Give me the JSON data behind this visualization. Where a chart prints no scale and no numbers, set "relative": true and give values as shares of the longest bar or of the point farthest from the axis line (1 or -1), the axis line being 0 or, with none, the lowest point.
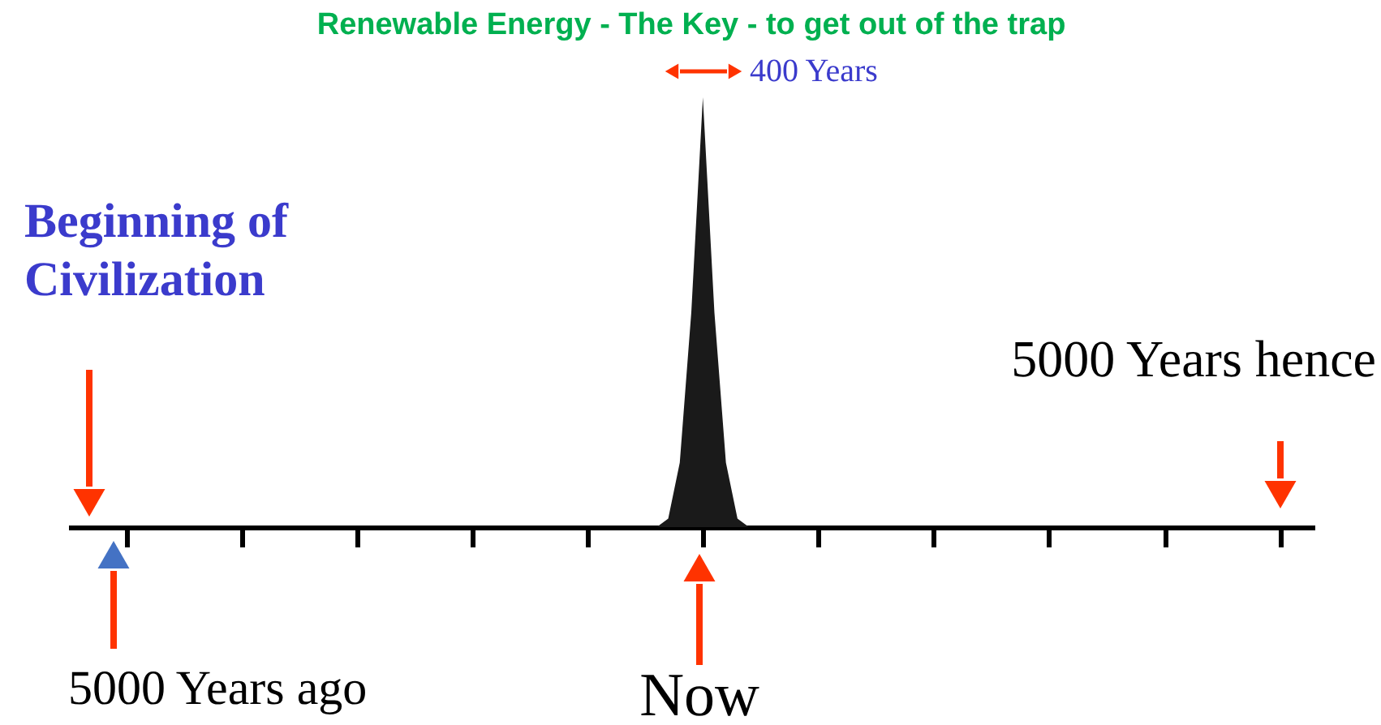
{
  "chart_data": {
    "type": "area",
    "title": "Renewable Energy - The Key - to get out of the trap",
    "relative": true,
    "categories": [
      null,
      null,
      null,
      null,
      null,
      null,
      null,
      null,
      null,
      null,
      null,
      null,
      null,
      null,
      null,
      null,
      null,
      null,
      null,
      null,
      null,
      null,
      null,
      null,
      null,
      null,
      null,
      null,
      null,
      null,
      null,
      null,
      null,
      null,
      null,
      null,
      null,
      null,
      null,
      null,
      null,
      null,
      null,
      null,
      null,
      null,
      null,
      null,
      null,
      null,
      null,
      null,
      null,
      null,
      null,
      null,
      null,
      null,
      null,
      null,
      null,
      null,
      null,
      null,
      null,
      null,
      null,
      null,
      null,
      null,
      null,
      null,
      null,
      null,
      null,
      null,
      null,
      null,
      null,
      null,
      null,
      null,
      null,
      null,
      null,
      null,
      null,
      null,
      null,
      null,
      null,
      null,
      null,
      null,
      null,
      null,
      null,
      null,
      null,
      null,
      null,
      null,
      null,
      null,
      null,
      null,
      null,
      null,
      null
    ],
    "series": [
      {
        "color": "#1a1a1a",
        "values": [
          0,
          0,
          0,
          0,
          0,
          0,
          0,
          0,
          0,
          0,
          0,
          0,
          0,
          0,
          0,
          0,
          0,
          0,
          0,
          0,
          0,
          0,
          0,
          0,
          0,
          0,
          0,
          0,
          0,
          0,
          0,
          0,
          0,
          0,
          0,
          0,
          0,
          0,
          0,
          0,
          0,
          0,
          0,
          0,
          0,
          0,
          0,
          0,
          0,
          0,
          0,
          0,
          0.02,
          0.15,
          0.5,
          1,
          0.5,
          0.15,
          0.02,
          0,
          0,
          0,
          0,
          0,
          0,
          0,
          0,
          0,
          0,
          0,
          0,
          0,
          0,
          0,
          0,
          0,
          0,
          0,
          0,
          0,
          0,
          0,
          0,
          0,
          0,
          0,
          0,
          0,
          0,
          0,
          0,
          0,
          0,
          0,
          0,
          0,
          0,
          0,
          0,
          0,
          0,
          0,
          0,
          0,
          0,
          0,
          0,
          0,
          0
        ]
      }
    ],
    "annotations": [
      "Beginning of Civilization",
      "5000 Years hence",
      "5000 Years ago",
      "Now",
      "400 Years"
    ]
  }
}
